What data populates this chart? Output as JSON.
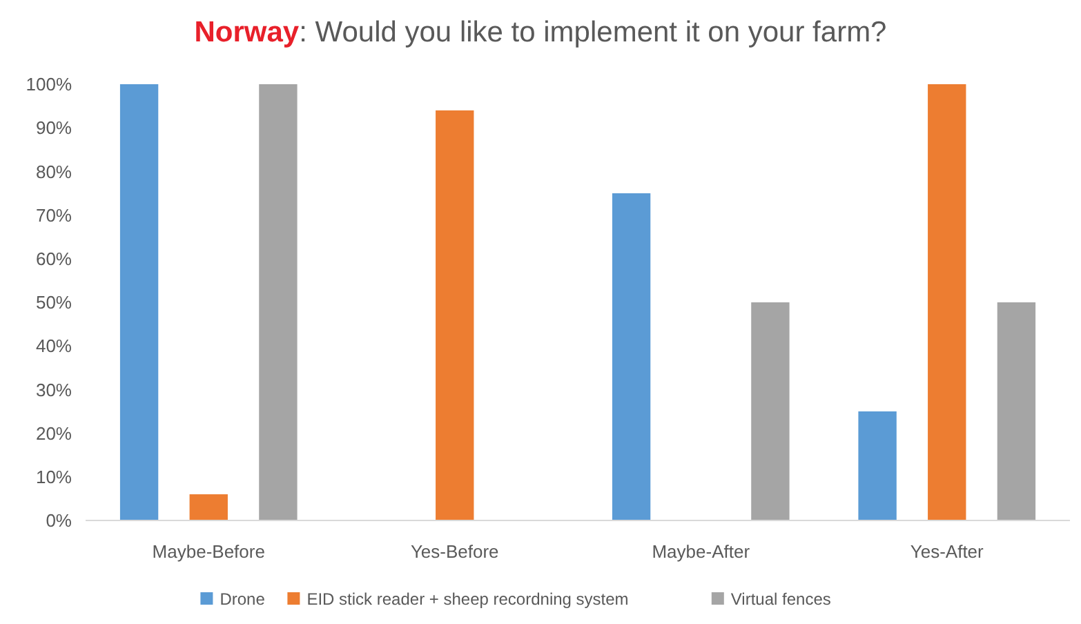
{
  "chart_data": {
    "type": "bar",
    "title": "Norway: Would you like to implement it on your farm?",
    "categories": [
      "Maybe-Before",
      "Yes-Before",
      "Maybe-After",
      "Yes-After"
    ],
    "series": [
      {
        "name": "Drone",
        "color": "#5b9bd5",
        "values": [
          100,
          0,
          75,
          25
        ]
      },
      {
        "name": "EID stick reader + sheep recordning system",
        "color": "#ed7d31",
        "values": [
          6,
          94,
          0,
          100
        ]
      },
      {
        "name": "Virtual fences",
        "color": "#a5a5a5",
        "values": [
          100,
          0,
          50,
          50
        ]
      }
    ],
    "ylim": [
      0,
      100
    ],
    "yticks": [
      {
        "value": 0,
        "label": "0%"
      },
      {
        "value": 10,
        "label": "10%"
      },
      {
        "value": 20,
        "label": "20%"
      },
      {
        "value": 30,
        "label": "30%"
      },
      {
        "value": 40,
        "label": "40%"
      },
      {
        "value": 50,
        "label": "50%"
      },
      {
        "value": 60,
        "label": "60%"
      },
      {
        "value": 70,
        "label": "70%"
      },
      {
        "value": 80,
        "label": "80%"
      },
      {
        "value": 90,
        "label": "90%"
      },
      {
        "value": 100,
        "label": "100%"
      }
    ],
    "legend": "bottom"
  }
}
